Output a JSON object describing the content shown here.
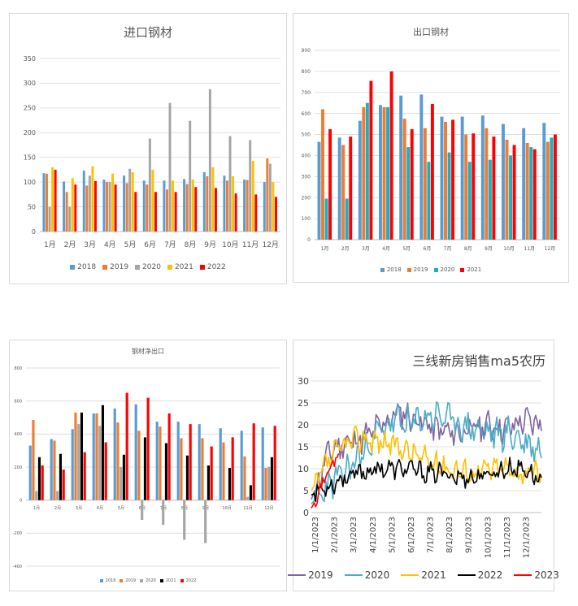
{
  "chart_data": [
    {
      "id": "import",
      "type": "bar",
      "title": "进口钢材",
      "categories": [
        "1月",
        "2月",
        "3月",
        "4月",
        "5月",
        "6月",
        "7月",
        "8月",
        "9月",
        "10月",
        "11月",
        "12月"
      ],
      "ylim": [
        0,
        350
      ],
      "yticks": [
        0,
        50,
        100,
        150,
        200,
        250,
        300,
        350
      ],
      "grid": true,
      "legend": "bottom",
      "series": [
        {
          "name": "2018",
          "color": "#5b9bd5",
          "values": [
            118,
            101,
            123,
            105,
            113,
            103,
            103,
            106,
            120,
            113,
            105,
            100
          ]
        },
        {
          "name": "2019",
          "color": "#ed7d31",
          "values": [
            117,
            80,
            93,
            100,
            98,
            95,
            85,
            96,
            112,
            103,
            104,
            148
          ]
        },
        {
          "name": "2020",
          "color": "#a5a5a5",
          "values": [
            50,
            50,
            113,
            100,
            127,
            188,
            260,
            224,
            288,
            193,
            185,
            137
          ]
        },
        {
          "name": "2021",
          "color": "#ffc000",
          "values": [
            130,
            108,
            132,
            117,
            120,
            125,
            103,
            105,
            130,
            112,
            143,
            100
          ]
        },
        {
          "name": "2022",
          "color": "#ff0000",
          "values": [
            125,
            95,
            102,
            95,
            80,
            80,
            80,
            90,
            88,
            77,
            75,
            70
          ]
        }
      ]
    },
    {
      "id": "export",
      "type": "bar",
      "title": "出口钢材",
      "categories": [
        "1月",
        "2月",
        "3月",
        "4月",
        "5月",
        "6月",
        "7月",
        "8月",
        "9月",
        "10月",
        "11月",
        "12月"
      ],
      "ylim": [
        0,
        900
      ],
      "yticks": [
        0,
        100,
        200,
        300,
        400,
        500,
        600,
        700,
        800,
        900
      ],
      "grid": true,
      "legend": "bottom",
      "series": [
        {
          "name": "2018",
          "color": "#5b9bd5",
          "values": [
            465,
            485,
            565,
            640,
            685,
            690,
            585,
            585,
            590,
            550,
            530,
            555
          ]
        },
        {
          "name": "2019",
          "color": "#ed7d31",
          "values": [
            620,
            450,
            630,
            630,
            575,
            530,
            560,
            500,
            530,
            475,
            460,
            465
          ]
        },
        {
          "name": "2020",
          "color": "#17b0c9",
          "values": [
            195,
            195,
            650,
            630,
            440,
            370,
            415,
            370,
            380,
            400,
            440,
            485
          ]
        },
        {
          "name": "2021",
          "color": "#ff0000",
          "values": [
            525,
            490,
            755,
            800,
            525,
            645,
            570,
            505,
            490,
            450,
            430,
            500
          ]
        }
      ]
    },
    {
      "id": "net-export",
      "type": "bar",
      "title": "钢材净出口",
      "categories": [
        "1月",
        "2月",
        "3月",
        "4月",
        "5月",
        "6月",
        "7月",
        "8月",
        "9月",
        "10月",
        "11月",
        "12月"
      ],
      "ylim": [
        -400,
        800
      ],
      "yticks": [
        -400,
        -200,
        0,
        200,
        400,
        600,
        800
      ],
      "grid": true,
      "legend": "bottom",
      "series": [
        {
          "name": "2018",
          "color": "#5b9bd5",
          "values": [
            330,
            370,
            430,
            525,
            555,
            580,
            475,
            475,
            460,
            435,
            420,
            440
          ]
        },
        {
          "name": "2019",
          "color": "#ed7d31",
          "values": [
            485,
            360,
            530,
            525,
            470,
            420,
            445,
            375,
            375,
            350,
            265,
            195
          ]
        },
        {
          "name": "2020",
          "color": "#a5a5a5",
          "values": [
            55,
            55,
            460,
            450,
            200,
            -120,
            -150,
            -240,
            -260,
            0,
            20,
            200
          ]
        },
        {
          "name": "2021",
          "color": "#000000",
          "values": [
            260,
            280,
            530,
            575,
            275,
            380,
            345,
            270,
            210,
            195,
            90,
            260
          ]
        },
        {
          "name": "2022",
          "color": "#ff0000",
          "values": [
            210,
            185,
            290,
            350,
            650,
            620,
            525,
            460,
            325,
            380,
            465,
            450
          ]
        }
      ]
    },
    {
      "id": "tier3-sales",
      "type": "line",
      "title": "三线新房销售ma5农历",
      "ylim": [
        0,
        30
      ],
      "yticks": [
        0,
        5,
        10,
        15,
        20,
        25,
        30
      ],
      "x_ticks": [
        "1/1/2023",
        "2/1/2023",
        "3/1/2023",
        "4/1/2023",
        "5/1/2023",
        "6/1/2023",
        "7/1/2023",
        "8/1/2023",
        "9/1/2023",
        "10/1/2023",
        "11/1/2023",
        "12/1/2023"
      ],
      "x_domain": [
        "1/1/2023",
        "12/31/2023"
      ],
      "grid": true,
      "legend": "bottom",
      "series": [
        {
          "name": "2019",
          "color": "#8064a2",
          "base": [
            3,
            14,
            16,
            17,
            20,
            23,
            21,
            19,
            18,
            19,
            20,
            19,
            21,
            20
          ],
          "amp": 2.5,
          "seed": 11,
          "end": 1
        },
        {
          "name": "2020",
          "color": "#4bacc6",
          "base": [
            2,
            6,
            9,
            13,
            18,
            21,
            20,
            22,
            22,
            20,
            19,
            18,
            18,
            16,
            14
          ],
          "amp": 2.8,
          "seed": 23,
          "end": 1
        },
        {
          "name": "2021",
          "color": "#ffc000",
          "base": [
            5,
            12,
            16,
            17,
            16,
            15,
            13,
            11,
            10,
            9,
            10,
            10,
            9,
            9
          ],
          "amp": 2.2,
          "seed": 37,
          "end": 1
        },
        {
          "name": "2022",
          "color": "#000000",
          "base": [
            4,
            6,
            8,
            9,
            10,
            10,
            10,
            9,
            9,
            8,
            8,
            9,
            10,
            10,
            7
          ],
          "amp": 1.7,
          "seed": 53,
          "end": 1
        },
        {
          "name": "2023",
          "color": "#ff0000",
          "base": [
            1,
            4,
            8,
            11,
            13
          ],
          "amp": 1.0,
          "seed": 71,
          "end": 0.12
        }
      ]
    }
  ]
}
